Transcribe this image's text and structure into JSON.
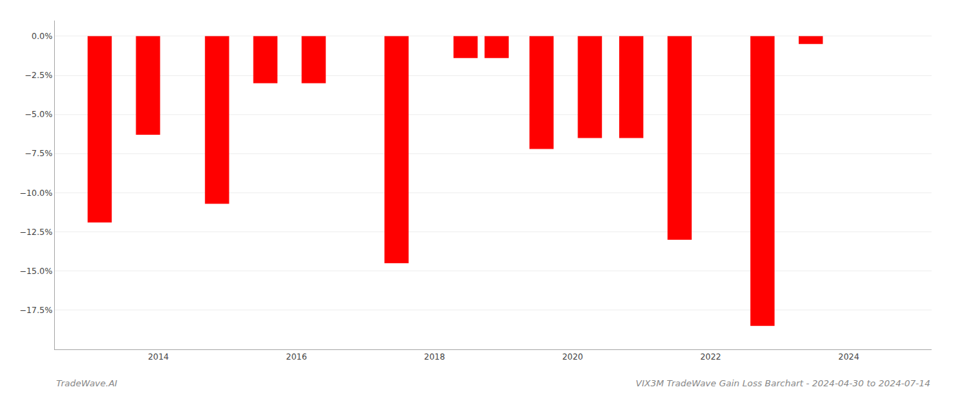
{
  "chart_data": {
    "type": "bar",
    "title": "VIX3M TradeWave Gain Loss Barchart - 2024-04-30 to 2024-07-14",
    "annotations": [
      "TradeWave.AI"
    ],
    "x": [
      2013.15,
      2013.85,
      2014.85,
      2015.55,
      2016.25,
      2017.45,
      2018.45,
      2018.9,
      2019.55,
      2020.25,
      2020.85,
      2021.55,
      2022.75,
      2023.45
    ],
    "values": [
      -0.119,
      -0.063,
      -0.107,
      -0.03,
      -0.03,
      -0.145,
      -0.014,
      -0.014,
      -0.072,
      -0.065,
      -0.065,
      -0.13,
      -0.185,
      -0.005
    ],
    "color": "#ff0000",
    "xlim": [
      2012.5,
      2025.2
    ],
    "ylim": [
      -0.2,
      0.01
    ],
    "xticks": [
      2014,
      2016,
      2018,
      2020,
      2022,
      2024
    ],
    "yticks": [
      {
        "value": 0.0,
        "label": "0.0%"
      },
      {
        "value": -0.025,
        "label": "−2.5%"
      },
      {
        "value": -0.05,
        "label": "−5.0%"
      },
      {
        "value": -0.075,
        "label": "−7.5%"
      },
      {
        "value": -0.1,
        "label": "−10.0%"
      },
      {
        "value": -0.125,
        "label": "−12.5%"
      },
      {
        "value": -0.15,
        "label": "−15.0%"
      },
      {
        "value": -0.175,
        "label": "−17.5%"
      }
    ],
    "grid": true
  }
}
